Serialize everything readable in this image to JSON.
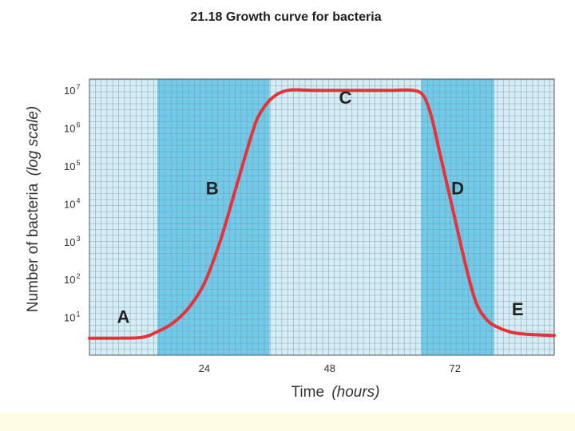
{
  "chart_data": {
    "type": "line",
    "title": "21.18 Growth curve for bacteria",
    "xlabel": "Time",
    "xlabel_unit": "(hours)",
    "ylabel": "Number of bacteria",
    "ylabel_unit": "(log scale)",
    "x_ticks": [
      24,
      48,
      72
    ],
    "y_ticks": [
      {
        "base": "10",
        "exp": "1",
        "value": 1
      },
      {
        "base": "10",
        "exp": "2",
        "value": 2
      },
      {
        "base": "10",
        "exp": "3",
        "value": 3
      },
      {
        "base": "10",
        "exp": "4",
        "value": 4
      },
      {
        "base": "10",
        "exp": "5",
        "value": 5
      },
      {
        "base": "10",
        "exp": "6",
        "value": 6
      },
      {
        "base": "10",
        "exp": "7",
        "value": 7
      }
    ],
    "xlim": [
      2,
      91
    ],
    "ylim": [
      0,
      7.3
    ],
    "y_scale": "log",
    "grid": true,
    "shaded_regions": [
      {
        "x_start": 15,
        "x_end": 36.5,
        "color": "#6fcbec"
      },
      {
        "x_start": 65.5,
        "x_end": 79.5,
        "color": "#6fcbec"
      }
    ],
    "line_color": "#e8323a",
    "series": [
      {
        "x": [
          2,
          7,
          12,
          15,
          18,
          21,
          24,
          27,
          30,
          33,
          34.5,
          37,
          40,
          45,
          50,
          55,
          60,
          64,
          66,
          67.5,
          69,
          71.5,
          74,
          76,
          78,
          80,
          83,
          86,
          91
        ],
        "y": [
          0.45,
          0.45,
          0.47,
          0.62,
          0.85,
          1.25,
          1.9,
          3.0,
          4.4,
          5.8,
          6.35,
          6.8,
          7.0,
          7.0,
          7.0,
          7.0,
          7.0,
          7.0,
          6.85,
          6.3,
          5.4,
          3.9,
          2.4,
          1.4,
          0.95,
          0.75,
          0.6,
          0.55,
          0.52
        ]
      }
    ],
    "annotations": [
      {
        "text": "A",
        "x": 8.5,
        "y": 0.85
      },
      {
        "text": "B",
        "x": 25.5,
        "y": 4.25
      },
      {
        "text": "C",
        "x": 51,
        "y": 6.65
      },
      {
        "text": "D",
        "x": 72.5,
        "y": 4.25
      },
      {
        "text": "E",
        "x": 84,
        "y": 1.05
      }
    ]
  }
}
